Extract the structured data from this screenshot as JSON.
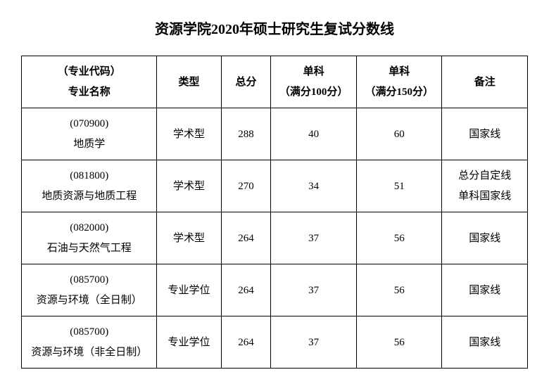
{
  "title": "资源学院2020年硕士研究生复试分数线",
  "table": {
    "columns": [
      {
        "line1": "（专业代码）",
        "line2": "专业名称"
      },
      {
        "line1": "类型",
        "line2": ""
      },
      {
        "line1": "总分",
        "line2": ""
      },
      {
        "line1": "单科",
        "line2": "（满分100分）"
      },
      {
        "line1": "单科",
        "line2": "（满分150分）"
      },
      {
        "line1": "备注",
        "line2": ""
      }
    ],
    "rows": [
      {
        "code": "(070900)",
        "major": "地质学",
        "type": "学术型",
        "total": "288",
        "s100": "40",
        "s150": "60",
        "note1": "国家线",
        "note2": ""
      },
      {
        "code": "(081800)",
        "major": "地质资源与地质工程",
        "type": "学术型",
        "total": "270",
        "s100": "34",
        "s150": "51",
        "note1": "总分自定线",
        "note2": "单科国家线"
      },
      {
        "code": "(082000)",
        "major": "石油与天然气工程",
        "type": "学术型",
        "total": "264",
        "s100": "37",
        "s150": "56",
        "note1": "国家线",
        "note2": ""
      },
      {
        "code": "(085700)",
        "major": "资源与环境（全日制）",
        "type": "专业学位",
        "total": "264",
        "s100": "37",
        "s150": "56",
        "note1": "国家线",
        "note2": ""
      },
      {
        "code": "(085700)",
        "major": "资源与环境（非全日制）",
        "type": "专业学位",
        "total": "264",
        "s100": "37",
        "s150": "56",
        "note1": "国家线",
        "note2": ""
      }
    ]
  }
}
